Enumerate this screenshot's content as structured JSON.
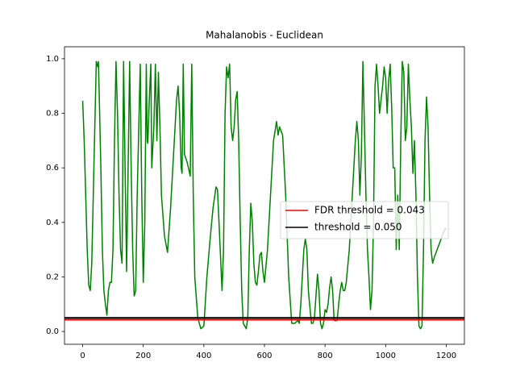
{
  "chart_data": {
    "type": "line",
    "title": "Mahalanobis - Euclidean",
    "x": [
      0,
      5,
      10,
      15,
      20,
      25,
      30,
      35,
      40,
      45,
      50,
      52,
      55,
      60,
      65,
      70,
      75,
      80,
      85,
      90,
      95,
      100,
      105,
      110,
      115,
      120,
      125,
      130,
      135,
      140,
      145,
      150,
      155,
      160,
      165,
      170,
      175,
      180,
      190,
      195,
      200,
      205,
      210,
      213,
      215,
      220,
      225,
      228,
      235,
      240,
      245,
      250,
      255,
      260,
      270,
      280,
      290,
      300,
      310,
      315,
      320,
      325,
      328,
      332,
      336,
      345,
      355,
      360,
      365,
      370,
      380,
      390,
      400,
      410,
      420,
      430,
      440,
      445,
      450,
      460,
      465,
      470,
      475,
      480,
      485,
      490,
      495,
      500,
      505,
      510,
      515,
      520,
      525,
      530,
      540,
      545,
      550,
      555,
      560,
      565,
      570,
      575,
      580,
      585,
      590,
      595,
      600,
      610,
      620,
      630,
      640,
      645,
      650,
      660,
      670,
      680,
      690,
      700,
      710,
      715,
      720,
      730,
      735,
      740,
      745,
      755,
      760,
      765,
      770,
      775,
      780,
      785,
      790,
      795,
      800,
      805,
      810,
      815,
      820,
      825,
      830,
      840,
      845,
      850,
      855,
      860,
      865,
      870,
      880,
      890,
      900,
      905,
      910,
      915,
      920,
      925,
      930,
      935,
      940,
      945,
      950,
      955,
      960,
      965,
      970,
      975,
      980,
      990,
      995,
      1000,
      1005,
      1010,
      1015,
      1020,
      1025,
      1030,
      1035,
      1040,
      1045,
      1050,
      1055,
      1060,
      1065,
      1070,
      1075,
      1080,
      1085,
      1090,
      1095,
      1100,
      1105,
      1110,
      1115,
      1120,
      1125,
      1130,
      1135,
      1140,
      1145,
      1150,
      1155,
      1160,
      1170,
      1180,
      1190,
      1199
    ],
    "values": [
      0.846,
      0.7,
      0.5,
      0.3,
      0.17,
      0.15,
      0.25,
      0.5,
      0.75,
      0.99,
      0.97,
      0.99,
      0.85,
      0.6,
      0.3,
      0.15,
      0.1,
      0.06,
      0.15,
      0.18,
      0.18,
      0.3,
      0.7,
      0.99,
      0.8,
      0.5,
      0.3,
      0.25,
      0.99,
      0.6,
      0.22,
      0.6,
      0.99,
      0.6,
      0.3,
      0.13,
      0.15,
      0.5,
      0.98,
      0.5,
      0.18,
      0.4,
      0.98,
      0.7,
      0.69,
      0.85,
      0.98,
      0.6,
      0.75,
      0.98,
      0.7,
      0.95,
      0.75,
      0.5,
      0.35,
      0.29,
      0.45,
      0.65,
      0.85,
      0.9,
      0.8,
      0.6,
      0.58,
      0.98,
      0.65,
      0.62,
      0.57,
      0.98,
      0.5,
      0.2,
      0.05,
      0.01,
      0.02,
      0.2,
      0.33,
      0.45,
      0.53,
      0.52,
      0.4,
      0.15,
      0.3,
      0.8,
      0.97,
      0.93,
      0.98,
      0.75,
      0.7,
      0.75,
      0.85,
      0.88,
      0.7,
      0.4,
      0.15,
      0.03,
      0.01,
      0.05,
      0.3,
      0.47,
      0.4,
      0.25,
      0.18,
      0.17,
      0.22,
      0.28,
      0.29,
      0.22,
      0.18,
      0.3,
      0.5,
      0.7,
      0.77,
      0.72,
      0.75,
      0.72,
      0.5,
      0.2,
      0.03,
      0.03,
      0.04,
      0.03,
      0.1,
      0.3,
      0.34,
      0.3,
      0.15,
      0.03,
      0.03,
      0.05,
      0.13,
      0.21,
      0.15,
      0.03,
      0.01,
      0.03,
      0.08,
      0.07,
      0.1,
      0.16,
      0.2,
      0.15,
      0.04,
      0.04,
      0.1,
      0.15,
      0.18,
      0.15,
      0.15,
      0.18,
      0.3,
      0.5,
      0.7,
      0.77,
      0.7,
      0.5,
      0.65,
      0.99,
      0.75,
      0.5,
      0.3,
      0.2,
      0.08,
      0.15,
      0.4,
      0.9,
      0.98,
      0.9,
      0.8,
      0.9,
      0.97,
      0.93,
      0.8,
      0.92,
      0.98,
      0.82,
      0.6,
      0.6,
      0.3,
      0.5,
      0.3,
      0.7,
      0.99,
      0.95,
      0.7,
      0.75,
      0.98,
      0.85,
      0.75,
      0.58,
      0.7,
      0.5,
      0.2,
      0.02,
      0.01,
      0.02,
      0.3,
      0.7,
      0.86,
      0.75,
      0.5,
      0.3,
      0.25,
      0.27,
      0.3,
      0.33,
      0.36,
      0.38
    ],
    "color": "#008000",
    "hlines": [
      {
        "name": "FDR threshold = 0.043",
        "color": "#ff0000",
        "value": 0.043
      },
      {
        "name": "threshold = 0.050",
        "color": "#000000",
        "value": 0.05
      }
    ],
    "legend": "center right",
    "xlim": [
      -60,
      1260
    ],
    "ylim": [
      -0.047,
      1.044
    ],
    "xticks": [
      0,
      200,
      400,
      600,
      800,
      1000,
      1200
    ],
    "yticks": [
      {
        "value": 0,
        "label": "0.0"
      },
      0.2,
      0.4,
      0.6,
      0.8,
      {
        "value": 1,
        "label": "1.0"
      }
    ]
  }
}
